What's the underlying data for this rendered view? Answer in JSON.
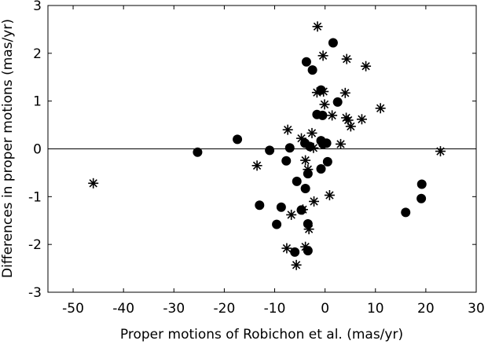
{
  "chart_data": {
    "type": "scatter",
    "title": "",
    "xlabel": "Proper motions of Robichon et al. (mas/yr)",
    "ylabel": "Differences in proper motions (mas/yr)",
    "xlim": [
      -55,
      30
    ],
    "ylim": [
      -3,
      3
    ],
    "xticks": [
      -50,
      -40,
      -30,
      -20,
      -10,
      0,
      10,
      20,
      30
    ],
    "yticks": [
      -3,
      -2,
      -1,
      0,
      1,
      2,
      3
    ],
    "zero_line": true,
    "grid": false,
    "legend": "none",
    "series": [
      {
        "marker": "filled-circle",
        "color": "#000000",
        "points": [
          {
            "x": -25.3,
            "y": -0.07
          },
          {
            "x": -17.4,
            "y": 0.2
          },
          {
            "x": -11.0,
            "y": -0.03
          },
          {
            "x": -13.0,
            "y": -1.18
          },
          {
            "x": -7.7,
            "y": -0.25
          },
          {
            "x": -7.0,
            "y": 0.02
          },
          {
            "x": -4.0,
            "y": 0.12
          },
          {
            "x": -3.0,
            "y": 0.05
          },
          {
            "x": -0.4,
            "y": 0.1
          },
          {
            "x": -0.8,
            "y": 0.17
          },
          {
            "x": 0.3,
            "y": 0.12
          },
          {
            "x": -1.6,
            "y": 0.72
          },
          {
            "x": -0.5,
            "y": 0.7
          },
          {
            "x": 2.5,
            "y": 0.98
          },
          {
            "x": -0.8,
            "y": 1.23
          },
          {
            "x": -3.7,
            "y": 1.82
          },
          {
            "x": -2.5,
            "y": 1.65
          },
          {
            "x": 1.6,
            "y": 2.22
          },
          {
            "x": -5.6,
            "y": -0.68
          },
          {
            "x": -3.4,
            "y": -0.52
          },
          {
            "x": -0.8,
            "y": -0.42
          },
          {
            "x": 0.5,
            "y": -0.27
          },
          {
            "x": -3.9,
            "y": -0.83
          },
          {
            "x": -8.7,
            "y": -1.22
          },
          {
            "x": -9.6,
            "y": -1.58
          },
          {
            "x": -4.7,
            "y": -1.28
          },
          {
            "x": -3.4,
            "y": -1.57
          },
          {
            "x": -6.0,
            "y": -2.16
          },
          {
            "x": -3.4,
            "y": -2.13
          },
          {
            "x": 16.0,
            "y": -1.33
          },
          {
            "x": 19.2,
            "y": -0.74
          },
          {
            "x": 19.1,
            "y": -1.04
          }
        ]
      },
      {
        "marker": "asterisk",
        "color": "#000000",
        "points": [
          {
            "x": -46.0,
            "y": -0.72
          },
          {
            "x": -13.5,
            "y": -0.35
          },
          {
            "x": -7.4,
            "y": 0.4
          },
          {
            "x": -4.7,
            "y": 0.22
          },
          {
            "x": -2.6,
            "y": 0.33
          },
          {
            "x": -2.3,
            "y": 0.02
          },
          {
            "x": -3.9,
            "y": -0.24
          },
          {
            "x": -3.4,
            "y": -0.43
          },
          {
            "x": -1.5,
            "y": 2.56
          },
          {
            "x": -0.4,
            "y": 1.95
          },
          {
            "x": 4.3,
            "y": 1.88
          },
          {
            "x": 8.1,
            "y": 1.73
          },
          {
            "x": -1.6,
            "y": 1.18
          },
          {
            "x": -0.3,
            "y": 1.2
          },
          {
            "x": -0.1,
            "y": 0.93
          },
          {
            "x": 1.4,
            "y": 0.7
          },
          {
            "x": 4.0,
            "y": 1.17
          },
          {
            "x": 4.2,
            "y": 0.65
          },
          {
            "x": 4.6,
            "y": 0.6
          },
          {
            "x": 5.1,
            "y": 0.47
          },
          {
            "x": 7.3,
            "y": 0.62
          },
          {
            "x": 11.0,
            "y": 0.85
          },
          {
            "x": 3.1,
            "y": 0.1
          },
          {
            "x": 22.9,
            "y": -0.05
          },
          {
            "x": 0.9,
            "y": -0.97
          },
          {
            "x": -2.2,
            "y": -1.1
          },
          {
            "x": -4.4,
            "y": -1.27
          },
          {
            "x": -6.7,
            "y": -1.38
          },
          {
            "x": -3.2,
            "y": -1.68
          },
          {
            "x": -7.6,
            "y": -2.08
          },
          {
            "x": -3.9,
            "y": -2.05
          },
          {
            "x": -5.7,
            "y": -2.43
          }
        ]
      }
    ]
  }
}
